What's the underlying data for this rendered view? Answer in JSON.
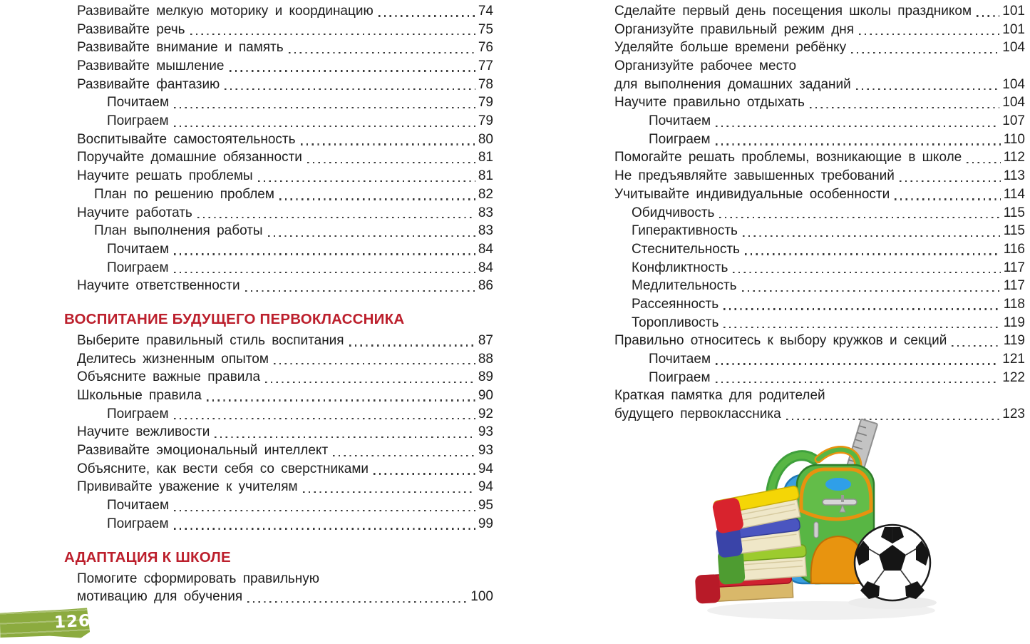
{
  "page": {
    "number": "126",
    "accent_red": "#bc1f2c",
    "strip_green": "#8cab3f",
    "text_color": "#1d1d1d"
  },
  "toc": {
    "left": {
      "sections": [
        {
          "heading": null,
          "entries": [
            {
              "text": "Развивайте мелкую моторику и координацию",
              "page": "74",
              "indent": 0
            },
            {
              "text": "Развивайте речь",
              "page": "75",
              "indent": 0
            },
            {
              "text": "Развивайте внимание и память",
              "page": "76",
              "indent": 0
            },
            {
              "text": "Развивайте мышление",
              "page": "77",
              "indent": 0
            },
            {
              "text": "Развивайте фантазию",
              "page": "78",
              "indent": 0
            },
            {
              "text": "Почитаем",
              "page": "79",
              "indent": 2
            },
            {
              "text": "Поиграем",
              "page": "79",
              "indent": 2
            },
            {
              "text": "Воспитывайте самостоятельность",
              "page": "80",
              "indent": 0
            },
            {
              "text": "Поручайте домашние обязанности",
              "page": "81",
              "indent": 0
            },
            {
              "text": "Научите решать проблемы",
              "page": "81",
              "indent": 0
            },
            {
              "text": "План по решению проблем",
              "page": "82",
              "indent": 1
            },
            {
              "text": "Научите работать",
              "page": "83",
              "indent": 0
            },
            {
              "text": "План выполнения работы",
              "page": "83",
              "indent": 1
            },
            {
              "text": "Почитаем",
              "page": "84",
              "indent": 2
            },
            {
              "text": "Поиграем",
              "page": "84",
              "indent": 2
            },
            {
              "text": "Научите ответственности",
              "page": "86",
              "indent": 0
            }
          ]
        },
        {
          "heading": "ВОСПИТАНИЕ БУДУЩЕГО ПЕРВОКЛАССНИКА",
          "entries": [
            {
              "text": "Выберите правильный стиль воспитания",
              "page": "87",
              "indent": 0
            },
            {
              "text": "Делитесь жизненным опытом",
              "page": "88",
              "indent": 0
            },
            {
              "text": "Объясните важные правила",
              "page": "89",
              "indent": 0
            },
            {
              "text": "Школьные правила",
              "page": "90",
              "indent": 0
            },
            {
              "text": "Поиграем",
              "page": "92",
              "indent": 2
            },
            {
              "text": "Научите вежливости",
              "page": "93",
              "indent": 0
            },
            {
              "text": "Развивайте эмоциональный интеллект",
              "page": "93",
              "indent": 0
            },
            {
              "text": "Объясните, как вести себя со сверстниками",
              "page": "94",
              "indent": 0
            },
            {
              "text": "Прививайте уважение к учителям",
              "page": "94",
              "indent": 0
            },
            {
              "text": "Почитаем",
              "page": "95",
              "indent": 2
            },
            {
              "text": "Поиграем",
              "page": "99",
              "indent": 2
            }
          ]
        },
        {
          "heading": "АДАПТАЦИЯ К ШКОЛЕ",
          "entries": [
            {
              "text_line1": "Помогите сформировать правильную",
              "text_line2": "мотивацию для обучения",
              "page": "100",
              "indent": 0
            }
          ]
        }
      ]
    },
    "right": {
      "sections": [
        {
          "heading": null,
          "entries": [
            {
              "text": "Сделайте первый день посещения школы праздником",
              "page": "101",
              "indent": 0
            },
            {
              "text": "Организуйте правильный режим дня",
              "page": "101",
              "indent": 0
            },
            {
              "text": "Уделяйте больше времени ребёнку",
              "page": "104",
              "indent": 0
            },
            {
              "text_line1": "Организуйте рабочее место",
              "text_line2": "для выполнения домашних заданий",
              "page": "104",
              "indent": 0
            },
            {
              "text": "Научите правильно отдыхать",
              "page": "104",
              "indent": 0
            },
            {
              "text": "Почитаем",
              "page": "107",
              "indent": 2
            },
            {
              "text": "Поиграем",
              "page": "110",
              "indent": 2
            },
            {
              "text": "Помогайте решать проблемы, возникающие в школе",
              "page": "112",
              "indent": 0
            },
            {
              "text": "Не предъявляйте завышенных требований",
              "page": "113",
              "indent": 0
            },
            {
              "text": "Учитывайте индивидуальные особенности",
              "page": "114",
              "indent": 0
            },
            {
              "text": "Обидчивость",
              "page": "115",
              "indent": 1
            },
            {
              "text": "Гиперактивность",
              "page": "115",
              "indent": 1
            },
            {
              "text": "Стеснительность",
              "page": "116",
              "indent": 1
            },
            {
              "text": "Конфликтность",
              "page": "117",
              "indent": 1
            },
            {
              "text": "Медлительность",
              "page": "117",
              "indent": 1
            },
            {
              "text": "Рассеянность",
              "page": "118",
              "indent": 1
            },
            {
              "text": "Торопливость",
              "page": "119",
              "indent": 1
            },
            {
              "text": "Правильно относитесь к выбору кружков и секций",
              "page": "119",
              "indent": 0
            },
            {
              "text": "Почитаем",
              "page": "121",
              "indent": 2
            },
            {
              "text": "Поиграем",
              "page": "122",
              "indent": 2
            },
            {
              "text_line1": "Краткая памятка для родителей",
              "text_line2": "будущего первоклассника",
              "page": "123",
              "indent": 0
            }
          ]
        }
      ]
    }
  },
  "illustration": {
    "items": [
      "stack-of-books",
      "green-backpack",
      "ruler",
      "soccer-ball"
    ]
  }
}
